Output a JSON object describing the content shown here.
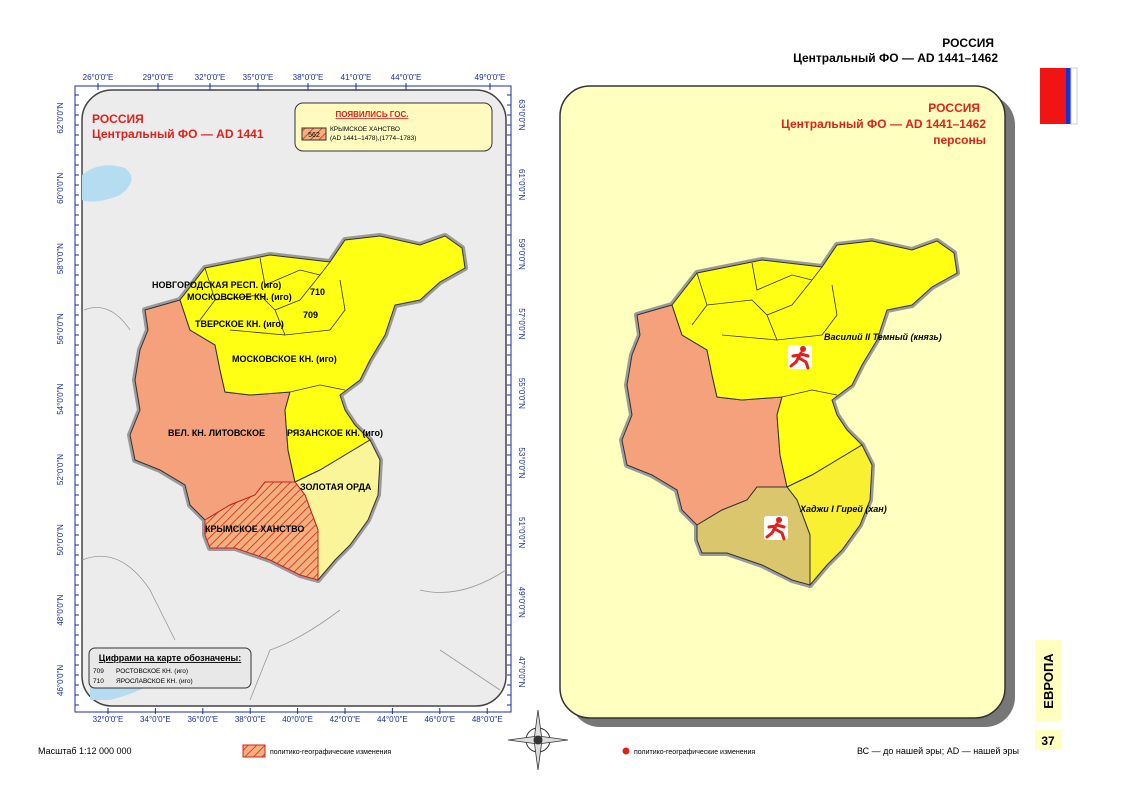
{
  "header": {
    "country": "РОССИЯ",
    "subtitle": "Центральный ФО — AD 1441–1462"
  },
  "left_map": {
    "title": "РОССИЯ",
    "subtitle": "Центральный ФО — AD 1441",
    "legend": {
      "title": "ПОЯВИЛИСЬ ГОС.",
      "code": "562",
      "name": "КРЫМСКОЕ ХАНСТВО",
      "period": "(AD 1441–1478),(1774–1783)"
    },
    "labels": [
      "НОВГОРОДСКАЯ РЕСП. (иго)",
      "МОСКОВСКОЕ КН. (иго)",
      "710",
      "709",
      "ТВЕРСКОЕ КН. (иго)",
      "МОСКОВСКОЕ КН. (иго)",
      "ВЕЛ. КН. ЛИТОВСКОЕ",
      "РЯЗАНСКОЕ КН. (иго)",
      "ЗОЛОТАЯ ОРДА",
      "КРЫМСКОЕ ХАНСТВО"
    ],
    "numbers_legend": {
      "title": "Цифрами на карте обозначены:",
      "items": [
        {
          "code": "709",
          "name": "РОСТОВСКОЕ КН. (иго)"
        },
        {
          "code": "710",
          "name": "ЯРОСЛАВСКОЕ КН. (иго)"
        }
      ]
    },
    "ticks": {
      "top": [
        "26°0'0\"E",
        "29°0'0\"E",
        "32°0'0\"E",
        "35°0'0\"E",
        "38°0'0\"E",
        "41°0'0\"E",
        "44°0'0\"E",
        "49°0'0\"E"
      ],
      "bottom": [
        "32°0'0\"E",
        "34°0'0\"E",
        "36°0'0\"E",
        "38°0'0\"E",
        "40°0'0\"E",
        "42°0'0\"E",
        "44°0'0\"E",
        "46°0'0\"E",
        "48°0'0\"E"
      ],
      "left": [
        "62°0'0\"N",
        "60°0'0\"N",
        "58°0'0\"N",
        "56°0'0\"N",
        "54°0'0\"N",
        "52°0'0\"N",
        "50°0'0\"N",
        "48°0'0\"N",
        "46°0'0\"N"
      ],
      "right": [
        "63°0'0\"N",
        "61°0'0\"N",
        "59°0'0\"N",
        "57°0'0\"N",
        "55°0'0\"N",
        "53°0'0\"N",
        "51°0'0\"N",
        "49°0'0\"N",
        "47°0'0\"N"
      ]
    }
  },
  "right_map": {
    "title": "РОССИЯ",
    "subtitle": "Центральный ФО — AD 1441–1462",
    "subtitle2": "персоны",
    "persons": [
      "Василий II Темный (князь)",
      "Хаджи I Гирей (хан)"
    ]
  },
  "footer": {
    "scale": "Масштаб 1:12 000 000",
    "legend_left": "политико-географические изменения",
    "legend_right": "политико-географические изменения",
    "era_note": "ВС — до нашей эры; AD — нашей эры",
    "page": "37",
    "section": "ЕВРОПА"
  }
}
